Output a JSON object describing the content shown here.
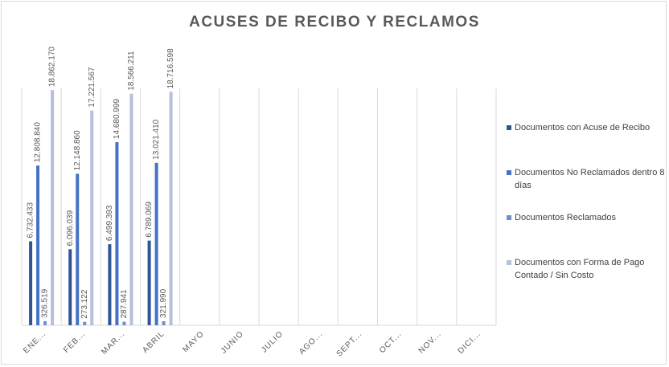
{
  "chart_data": {
    "type": "bar",
    "title": "ACUSES DE RECIBO Y RECLAMOS",
    "categories": [
      "ENE...",
      "FEB...",
      "MAR...",
      "ABRIL",
      "MAYO",
      "JUNIO",
      "JULIO",
      "AGO...",
      "SEPT...",
      "OCT...",
      "NOV...",
      "DICI..."
    ],
    "series": [
      {
        "name": "Documentos con Acuse de Recibo",
        "color": "#2f5597",
        "values": [
          6732433,
          6096039,
          6499393,
          6789069,
          null,
          null,
          null,
          null,
          null,
          null,
          null,
          null
        ],
        "labels": [
          "6.732.433",
          "6.096.039",
          "6.499.393",
          "6.789.069"
        ]
      },
      {
        "name": "Documentos No Reclamados dentro 8 días",
        "color": "#4472c4",
        "values": [
          12808840,
          12148860,
          14680999,
          13021410,
          null,
          null,
          null,
          null,
          null,
          null,
          null,
          null
        ],
        "labels": [
          "12.808.840",
          "12.148.860",
          "14.680.999",
          "13.021.410"
        ]
      },
      {
        "name": "Documentos Reclamados",
        "color": "#6f8fd0",
        "values": [
          326519,
          273122,
          287941,
          321990,
          null,
          null,
          null,
          null,
          null,
          null,
          null,
          null
        ],
        "labels": [
          "326.519",
          "273.122",
          "287.941",
          "321.990"
        ]
      },
      {
        "name": "Documentos con Forma de Pago Contado / Sin Costo",
        "color": "#b4c0de",
        "values": [
          18862170,
          17221567,
          18566211,
          18716598,
          null,
          null,
          null,
          null,
          null,
          null,
          null,
          null
        ],
        "labels": [
          "18.862.170",
          "17.221.567",
          "18.566.211",
          "18.716.598"
        ]
      }
    ],
    "ylim": [
      0,
      19000000
    ],
    "grid": "vertical category gridlines",
    "legend_position": "right",
    "label_color": "#595959",
    "grid_color": "#d9d9d9"
  }
}
